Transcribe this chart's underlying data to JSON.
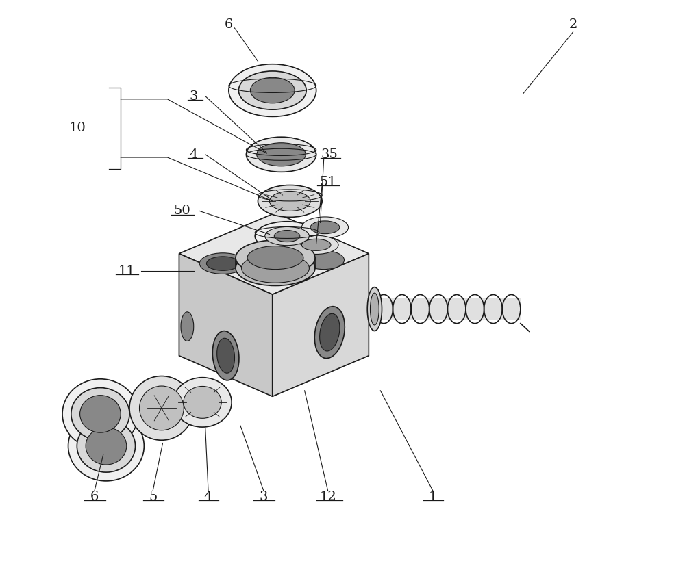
{
  "bg_color": "#ffffff",
  "line_color": "#1a1a1a",
  "light_gray": "#e8e8e8",
  "mid_gray": "#d0d0d0",
  "dark_gray": "#888888",
  "darker_gray": "#555555"
}
